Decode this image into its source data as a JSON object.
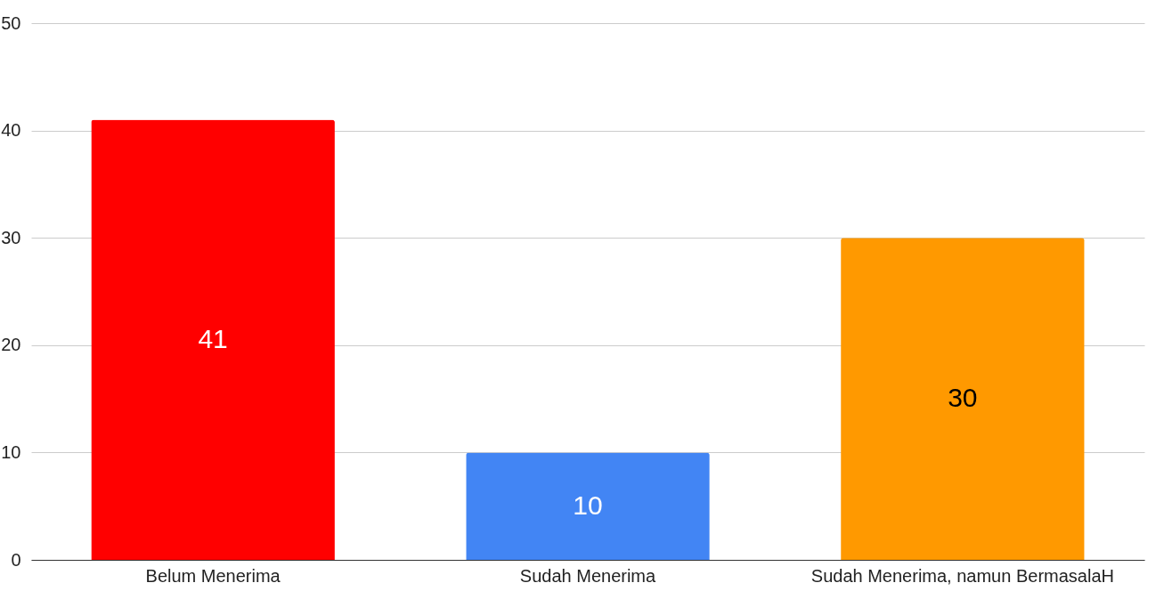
{
  "chart_data": {
    "type": "bar",
    "categories": [
      "Belum Menerima",
      "Sudah Menerima",
      "Sudah Menerima, namun BermasalaH"
    ],
    "values": [
      41,
      10,
      30
    ],
    "colors": [
      "#ff0000",
      "#4285f4",
      "#ff9900"
    ],
    "ylim": [
      0,
      50
    ],
    "yticks": [
      0,
      10,
      20,
      30,
      40,
      50
    ],
    "grid": "y",
    "data_labels": true
  }
}
